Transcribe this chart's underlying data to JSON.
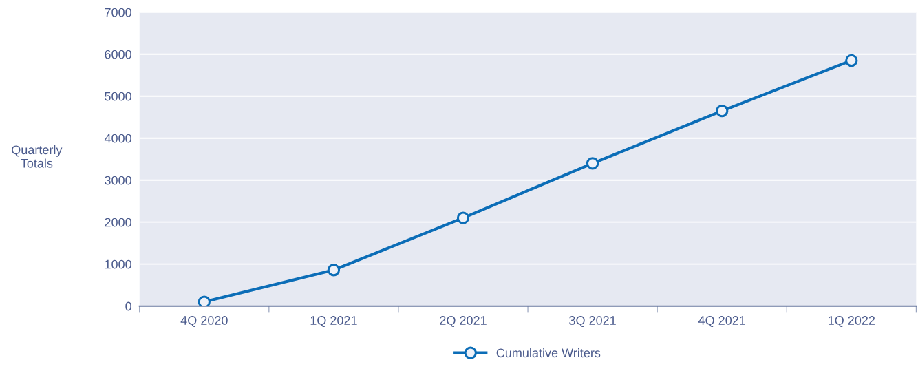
{
  "chart_data": {
    "type": "line",
    "ylabel": "Quarterly\nTotals",
    "categories": [
      "4Q 2020",
      "1Q 2021",
      "2Q 2021",
      "3Q 2021",
      "4Q 2021",
      "1Q 2022"
    ],
    "series": [
      {
        "name": "Cumulative Writers",
        "color": "#0b6db7",
        "values": [
          100,
          860,
          2100,
          3400,
          4650,
          5850
        ]
      }
    ],
    "ylim": [
      0,
      7000
    ],
    "yticks": [
      0,
      1000,
      2000,
      3000,
      4000,
      5000,
      6000,
      7000
    ],
    "grid": "y",
    "legend": "bottom",
    "marker": "circle",
    "line_style": "solid"
  }
}
